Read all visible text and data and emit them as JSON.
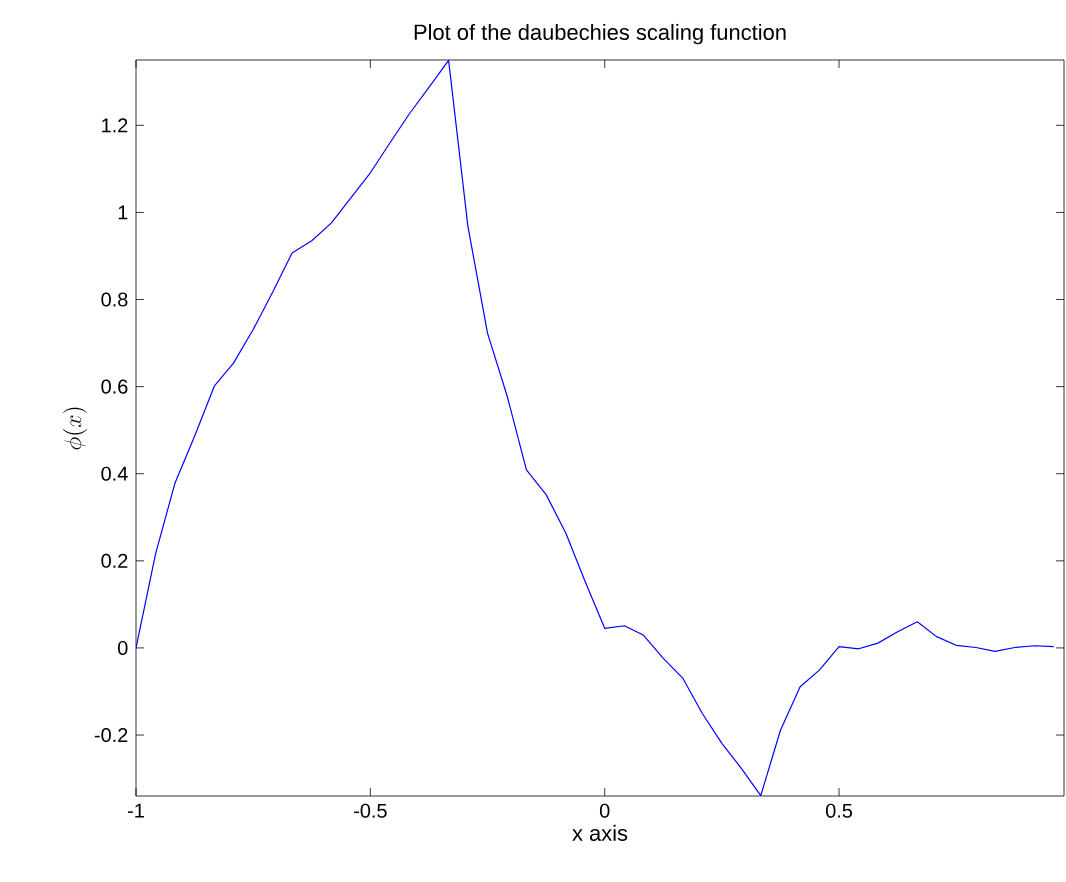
{
  "chart_data": {
    "type": "line",
    "title": "Plot of the daubechies scaling function",
    "xlabel": "x axis",
    "ylabel": "\\phi(x)",
    "x": [
      -1,
      -0.958,
      -0.917,
      -0.875,
      -0.833,
      -0.792,
      -0.75,
      -0.708,
      -0.667,
      -0.625,
      -0.583,
      -0.542,
      -0.5,
      -0.458,
      -0.417,
      -0.375,
      -0.333,
      -0.292,
      -0.25,
      -0.208,
      -0.167,
      -0.125,
      -0.083,
      -0.042,
      0,
      0.042,
      0.083,
      0.125,
      0.167,
      0.208,
      0.25,
      0.292,
      0.333,
      0.375,
      0.417,
      0.458,
      0.5,
      0.542,
      0.583,
      0.625,
      0.667,
      0.708,
      0.75,
      0.792,
      0.833,
      0.875,
      0.917,
      0.958
    ],
    "series": [
      {
        "color": "#0000ff",
        "values": [
          0,
          0.217,
          0.378,
          0.486,
          0.601,
          0.654,
          0.731,
          0.818,
          0.907,
          0.935,
          0.976,
          1.033,
          1.091,
          1.16,
          1.226,
          1.287,
          1.349,
          0.969,
          0.723,
          0.578,
          0.409,
          0.352,
          0.264,
          0.153,
          0.045,
          0.051,
          0.029,
          -0.024,
          -0.07,
          -0.15,
          -0.219,
          -0.277,
          -0.339,
          -0.189,
          -0.089,
          -0.051,
          0.003,
          -0.002,
          0.011,
          0.037,
          0.06,
          0.026,
          0.006,
          0.001,
          -0.008,
          0.001,
          0.005,
          0.003
        ]
      }
    ],
    "xlim": [
      -1,
      0.98
    ],
    "ylim": [
      -0.34,
      1.35
    ],
    "xticks": [
      -1,
      -0.5,
      0,
      0.5
    ],
    "yticks": [
      -0.2,
      0,
      0.2,
      0.4,
      0.6,
      0.8,
      1,
      1.2
    ],
    "marker": "none",
    "line_style": "solid"
  }
}
